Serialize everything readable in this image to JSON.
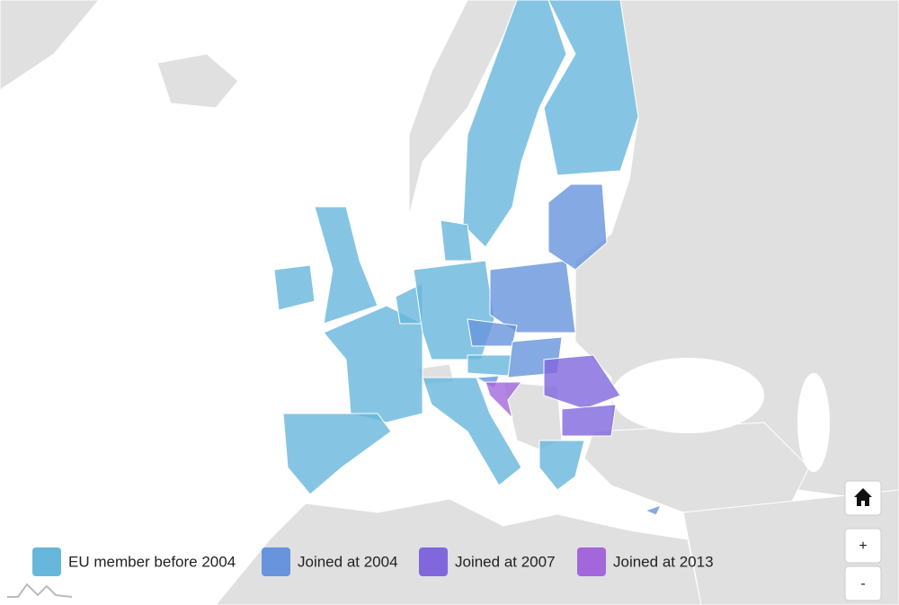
{
  "legend": {
    "items": [
      {
        "label": "EU member before 2004",
        "color": "#67b7dc"
      },
      {
        "label": "Joined at 2004",
        "color": "#6794dc"
      },
      {
        "label": "Joined at 2007",
        "color": "#8067dc"
      },
      {
        "label": "Joined at 2013",
        "color": "#a367dc"
      }
    ]
  },
  "controls": {
    "zoom_in": "+",
    "zoom_out": "-"
  }
}
